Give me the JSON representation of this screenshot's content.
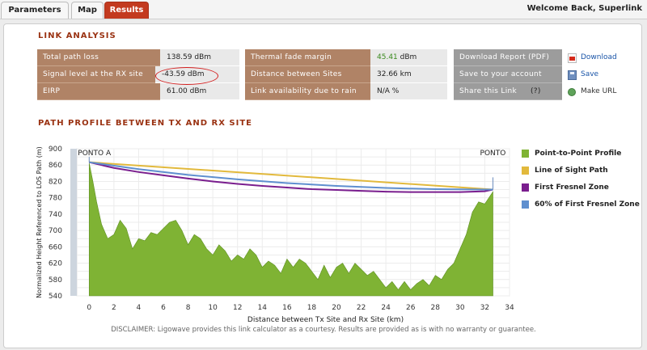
{
  "tabs": [
    {
      "label": "Parameters"
    },
    {
      "label": "Map"
    },
    {
      "label": "Results"
    }
  ],
  "welcome": "Welcome Back, Superlink",
  "link_analysis": {
    "title": "LINK ANALYSIS",
    "col1": [
      {
        "label": "Total path loss",
        "value": "138.59 dBm"
      },
      {
        "label": "Signal level at the RX site",
        "value": "-43.59 dBm"
      },
      {
        "label": "EIRP",
        "value": "61.00 dBm"
      }
    ],
    "col2": [
      {
        "label": "Thermal fade margin",
        "value": "45.41",
        "unit": "dBm"
      },
      {
        "label": "Distance between Sites",
        "value": "32.66 km"
      },
      {
        "label": "Link availability due to rain",
        "value": "N/A %"
      }
    ],
    "col3": [
      {
        "label": "Download Report (PDF)",
        "action": "Download",
        "icon": "pdf-icon"
      },
      {
        "label": "Save to your account",
        "action": "Save",
        "icon": "save-icon"
      },
      {
        "label": "Share this Link",
        "help": "(?)",
        "action": "Make URL",
        "icon": "globe-icon"
      }
    ]
  },
  "path_profile": {
    "title": "PATH PROFILE BETWEEN TX AND RX SITE"
  },
  "chart_data": {
    "type": "area",
    "title": "",
    "xlabel": "Distance between Tx Site and Rx Site (km)",
    "ylabel": "Normalized Height Referenced to LOS Path (m)",
    "xlim": [
      -1,
      34
    ],
    "ylim": [
      540,
      900
    ],
    "xticks": [
      0,
      2,
      4,
      6,
      8,
      10,
      12,
      14,
      16,
      18,
      20,
      22,
      24,
      26,
      28,
      30,
      32,
      34
    ],
    "yticks": [
      540,
      560,
      580,
      600,
      620,
      640,
      660,
      680,
      700,
      720,
      740,
      760,
      780,
      800,
      820,
      840,
      860,
      880,
      900
    ],
    "yticks_labeled": [
      540,
      580,
      620,
      660,
      700,
      740,
      780,
      820,
      860,
      900
    ],
    "grid": true,
    "legend_position": "right",
    "site_labels": [
      {
        "x": 0,
        "text": "PONTO A"
      },
      {
        "x": 32.66,
        "text": "PONTO"
      }
    ],
    "series": [
      {
        "name": "Point-to-Point Profile",
        "type": "area",
        "color": "#7fb334",
        "x": [
          0,
          0.3,
          0.6,
          1,
          1.5,
          2,
          2.5,
          3,
          3.5,
          4,
          4.5,
          5,
          5.5,
          6,
          6.5,
          7,
          7.5,
          8,
          8.5,
          9,
          9.5,
          10,
          10.5,
          11,
          11.5,
          12,
          12.5,
          13,
          13.5,
          14,
          14.5,
          15,
          15.5,
          16,
          16.5,
          17,
          17.5,
          18,
          18.5,
          19,
          19.5,
          20,
          20.5,
          21,
          21.5,
          22,
          22.5,
          23,
          23.5,
          24,
          24.5,
          25,
          25.5,
          26,
          26.5,
          27,
          27.5,
          28,
          28.5,
          29,
          29.5,
          30,
          30.5,
          31,
          31.5,
          32,
          32.66
        ],
        "y": [
          865,
          820,
          770,
          715,
          680,
          690,
          725,
          705,
          655,
          680,
          675,
          695,
          690,
          705,
          720,
          725,
          700,
          665,
          690,
          680,
          655,
          640,
          665,
          650,
          625,
          640,
          630,
          655,
          640,
          610,
          625,
          615,
          595,
          630,
          610,
          630,
          620,
          600,
          580,
          615,
          585,
          610,
          620,
          595,
          620,
          605,
          590,
          600,
          580,
          560,
          575,
          555,
          575,
          555,
          570,
          580,
          565,
          590,
          580,
          605,
          620,
          655,
          690,
          745,
          770,
          765,
          795
        ]
      },
      {
        "name": "Line of Sight Path",
        "type": "line",
        "color": "#e2b93c",
        "x": [
          0,
          32.66
        ],
        "y": [
          867,
          800
        ]
      },
      {
        "name": "First Fresnel Zone",
        "type": "line",
        "color": "#7a1e8e",
        "x": [
          0,
          2,
          4,
          6,
          8,
          10,
          12,
          14,
          16,
          18,
          20,
          22,
          24,
          26,
          28,
          30,
          32,
          32.66
        ],
        "y": [
          867,
          853,
          843,
          835,
          827,
          820,
          814,
          809,
          805,
          801,
          799,
          797,
          795,
          794,
          794,
          794,
          796,
          800
        ]
      },
      {
        "name": "60% of First Fresnel Zone",
        "type": "line",
        "color": "#5f8fcf",
        "x": [
          0,
          4,
          8,
          12,
          16,
          20,
          24,
          28,
          32,
          32.66
        ],
        "y": [
          867,
          850,
          836,
          825,
          816,
          809,
          804,
          801,
          800,
          800
        ]
      }
    ]
  },
  "legend": [
    {
      "label": "Point-to-Point Profile",
      "color": "#7fb334"
    },
    {
      "label": "Line of Sight Path",
      "color": "#e2b93c"
    },
    {
      "label": "First Fresnel Zone",
      "color": "#7a1e8e"
    },
    {
      "label": "60% of First Fresnel Zone",
      "color": "#5f8fcf"
    }
  ],
  "disclaimer": "DISCLAIMER: Ligowave provides this link calculator as a courtesy.  Results are provided as is with no warranty or guarantee."
}
